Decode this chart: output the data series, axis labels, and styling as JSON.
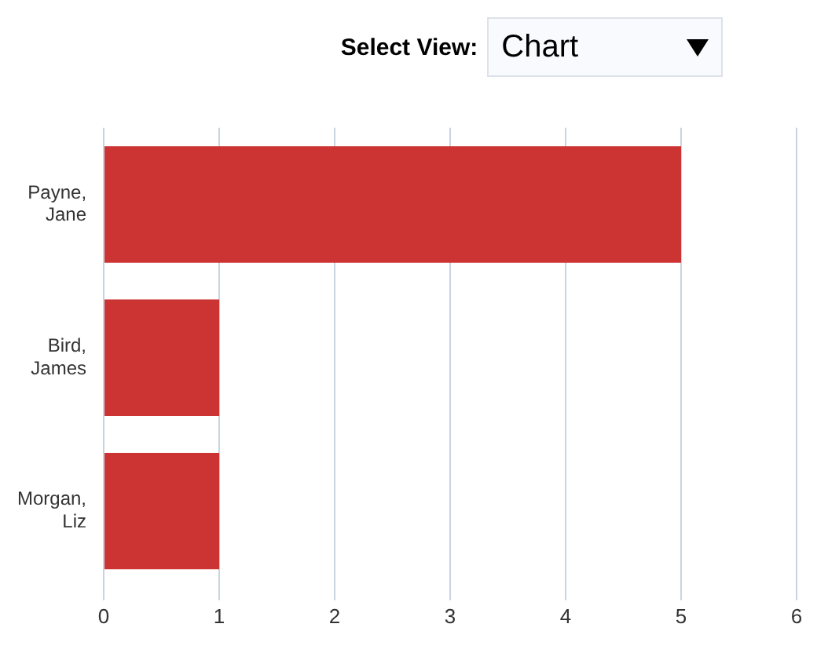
{
  "chart_data": {
    "type": "bar",
    "orientation": "horizontal",
    "categories": [
      "Payne, Jane",
      "Bird, James",
      "Morgan, Liz"
    ],
    "values": [
      5,
      1,
      1
    ],
    "color": "#cc3333",
    "xlim": [
      0,
      6
    ],
    "xticks": [
      0,
      1,
      2,
      3,
      4,
      5,
      6
    ],
    "grid": "x",
    "annotations": [
      "Select View:",
      "Chart"
    ]
  }
}
